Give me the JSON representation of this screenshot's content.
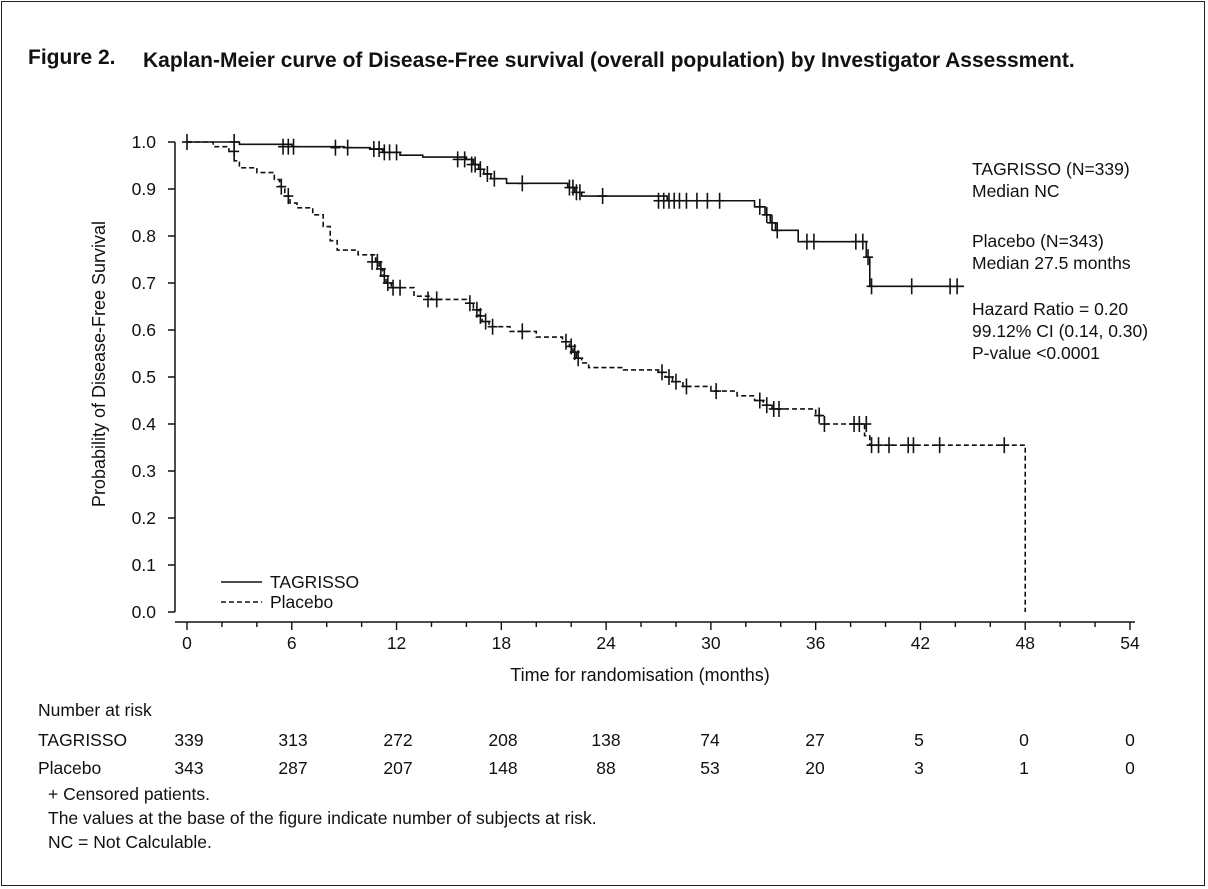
{
  "title": {
    "label": "Figure 2.",
    "text": "Kaplan-Meier curve of Disease-Free survival (overall population) by Investigator Assessment."
  },
  "chart_data": {
    "type": "line",
    "subtype": "kaplan-meier step curve",
    "xlabel": "Time for randomisation (months)",
    "ylabel": "Probability of Disease-Free Survival",
    "xlim": [
      0,
      54
    ],
    "ylim": [
      0,
      1
    ],
    "x_ticks": [
      0,
      6,
      12,
      18,
      24,
      30,
      36,
      42,
      48,
      54
    ],
    "y_ticks": [
      "0.0",
      "0.1",
      "0.2",
      "0.3",
      "0.4",
      "0.5",
      "0.6",
      "0.7",
      "0.8",
      "0.9",
      "1.0"
    ],
    "grid": false,
    "legend_position": "bottom-left",
    "series": [
      {
        "name": "TAGRISSO",
        "line_style": "solid",
        "steps": [
          [
            0,
            1.0
          ],
          [
            3.0,
            0.995
          ],
          [
            6.0,
            0.99
          ],
          [
            9.0,
            0.988
          ],
          [
            10.5,
            0.985
          ],
          [
            11.2,
            0.978
          ],
          [
            12.2,
            0.972
          ],
          [
            13.5,
            0.968
          ],
          [
            16.0,
            0.963
          ],
          [
            16.4,
            0.952
          ],
          [
            16.7,
            0.942
          ],
          [
            17.0,
            0.932
          ],
          [
            17.4,
            0.922
          ],
          [
            18.3,
            0.912
          ],
          [
            21.8,
            0.903
          ],
          [
            22.2,
            0.893
          ],
          [
            22.6,
            0.885
          ],
          [
            27.5,
            0.875
          ],
          [
            32.5,
            0.862
          ],
          [
            33.1,
            0.845
          ],
          [
            33.4,
            0.828
          ],
          [
            33.7,
            0.812
          ],
          [
            35.0,
            0.788
          ],
          [
            38.9,
            0.755
          ],
          [
            39.1,
            0.693
          ]
        ],
        "end_x": 44.5,
        "censored": [
          [
            0,
            1.0
          ],
          [
            2.7,
            1.0
          ],
          [
            5.5,
            0.99
          ],
          [
            5.8,
            0.99
          ],
          [
            6.1,
            0.99
          ],
          [
            8.5,
            0.988
          ],
          [
            9.2,
            0.988
          ],
          [
            10.7,
            0.985
          ],
          [
            11.0,
            0.985
          ],
          [
            11.3,
            0.978
          ],
          [
            11.6,
            0.978
          ],
          [
            12.0,
            0.978
          ],
          [
            15.5,
            0.963
          ],
          [
            15.9,
            0.963
          ],
          [
            16.3,
            0.952
          ],
          [
            16.5,
            0.952
          ],
          [
            16.8,
            0.942
          ],
          [
            17.2,
            0.932
          ],
          [
            17.6,
            0.922
          ],
          [
            19.2,
            0.912
          ],
          [
            21.9,
            0.903
          ],
          [
            22.1,
            0.903
          ],
          [
            22.3,
            0.893
          ],
          [
            22.5,
            0.893
          ],
          [
            23.8,
            0.885
          ],
          [
            27.0,
            0.875
          ],
          [
            27.3,
            0.875
          ],
          [
            27.6,
            0.875
          ],
          [
            27.9,
            0.875
          ],
          [
            28.2,
            0.875
          ],
          [
            28.6,
            0.875
          ],
          [
            29.2,
            0.875
          ],
          [
            29.8,
            0.875
          ],
          [
            30.5,
            0.875
          ],
          [
            32.8,
            0.862
          ],
          [
            33.2,
            0.845
          ],
          [
            33.5,
            0.828
          ],
          [
            33.8,
            0.812
          ],
          [
            35.5,
            0.788
          ],
          [
            35.9,
            0.788
          ],
          [
            38.3,
            0.788
          ],
          [
            38.7,
            0.788
          ],
          [
            39.0,
            0.755
          ],
          [
            39.2,
            0.693
          ],
          [
            41.5,
            0.693
          ],
          [
            43.7,
            0.693
          ],
          [
            44.1,
            0.693
          ]
        ]
      },
      {
        "name": "Placebo",
        "line_style": "dashed",
        "steps": [
          [
            0,
            1.0
          ],
          [
            1.5,
            0.99
          ],
          [
            2.4,
            0.98
          ],
          [
            2.7,
            0.96
          ],
          [
            3.0,
            0.945
          ],
          [
            4.0,
            0.935
          ],
          [
            5.0,
            0.92
          ],
          [
            5.3,
            0.905
          ],
          [
            5.6,
            0.885
          ],
          [
            5.9,
            0.87
          ],
          [
            6.3,
            0.86
          ],
          [
            7.2,
            0.845
          ],
          [
            7.8,
            0.82
          ],
          [
            8.2,
            0.79
          ],
          [
            8.6,
            0.77
          ],
          [
            9.8,
            0.76
          ],
          [
            10.8,
            0.745
          ],
          [
            11.0,
            0.73
          ],
          [
            11.2,
            0.715
          ],
          [
            11.4,
            0.7
          ],
          [
            11.7,
            0.69
          ],
          [
            13.0,
            0.672
          ],
          [
            14.0,
            0.665
          ],
          [
            16.0,
            0.657
          ],
          [
            16.4,
            0.643
          ],
          [
            16.7,
            0.63
          ],
          [
            16.9,
            0.618
          ],
          [
            17.3,
            0.607
          ],
          [
            18.5,
            0.597
          ],
          [
            20.0,
            0.585
          ],
          [
            21.5,
            0.575
          ],
          [
            21.9,
            0.565
          ],
          [
            22.1,
            0.553
          ],
          [
            22.3,
            0.54
          ],
          [
            22.6,
            0.53
          ],
          [
            23.0,
            0.52
          ],
          [
            25.0,
            0.515
          ],
          [
            27.0,
            0.51
          ],
          [
            27.4,
            0.5
          ],
          [
            27.8,
            0.49
          ],
          [
            28.4,
            0.48
          ],
          [
            30.0,
            0.47
          ],
          [
            31.5,
            0.46
          ],
          [
            32.5,
            0.45
          ],
          [
            33.0,
            0.44
          ],
          [
            33.5,
            0.432
          ],
          [
            36.0,
            0.418
          ],
          [
            36.5,
            0.4
          ],
          [
            38.8,
            0.375
          ],
          [
            39.1,
            0.355
          ],
          [
            48.0,
            0.0
          ]
        ],
        "end_x": 48.0,
        "censored": [
          [
            2.7,
            0.98
          ],
          [
            5.4,
            0.905
          ],
          [
            5.8,
            0.885
          ],
          [
            10.6,
            0.745
          ],
          [
            10.9,
            0.745
          ],
          [
            11.1,
            0.73
          ],
          [
            11.3,
            0.715
          ],
          [
            11.5,
            0.7
          ],
          [
            11.8,
            0.69
          ],
          [
            12.2,
            0.69
          ],
          [
            13.8,
            0.665
          ],
          [
            14.3,
            0.665
          ],
          [
            16.2,
            0.657
          ],
          [
            16.6,
            0.643
          ],
          [
            16.8,
            0.63
          ],
          [
            17.1,
            0.618
          ],
          [
            17.5,
            0.607
          ],
          [
            19.2,
            0.597
          ],
          [
            21.7,
            0.575
          ],
          [
            22.0,
            0.565
          ],
          [
            22.2,
            0.553
          ],
          [
            22.4,
            0.54
          ],
          [
            27.2,
            0.51
          ],
          [
            27.6,
            0.5
          ],
          [
            28.0,
            0.49
          ],
          [
            28.6,
            0.48
          ],
          [
            30.3,
            0.47
          ],
          [
            32.8,
            0.45
          ],
          [
            33.2,
            0.44
          ],
          [
            33.6,
            0.432
          ],
          [
            33.9,
            0.432
          ],
          [
            36.2,
            0.418
          ],
          [
            36.5,
            0.4
          ],
          [
            38.2,
            0.4
          ],
          [
            38.5,
            0.4
          ],
          [
            38.9,
            0.4
          ],
          [
            39.2,
            0.355
          ],
          [
            39.6,
            0.355
          ],
          [
            40.2,
            0.355
          ],
          [
            41.3,
            0.355
          ],
          [
            41.6,
            0.355
          ],
          [
            43.1,
            0.355
          ],
          [
            46.8,
            0.355
          ]
        ]
      }
    ],
    "annotations": [
      {
        "line1": "TAGRISSO (N=339)",
        "line2": "Median NC"
      },
      {
        "line1": "Placebo (N=343)",
        "line2": "Median 27.5 months"
      },
      {
        "line1": "Hazard Ratio = 0.20",
        "line2": "99.12% CI (0.14, 0.30)",
        "line3": "P-value <0.0001"
      }
    ]
  },
  "risk_table": {
    "header": "Number at risk",
    "rows": [
      {
        "label": "TAGRISSO",
        "values": [
          "339",
          "313",
          "272",
          "208",
          "138",
          "74",
          "27",
          "5",
          "0",
          "0"
        ]
      },
      {
        "label": "Placebo",
        "values": [
          "343",
          "287",
          "207",
          "148",
          "88",
          "53",
          "20",
          "3",
          "1",
          "0"
        ]
      }
    ]
  },
  "footnotes": [
    "+ Censored patients.",
    "The values at the base of the figure indicate number of subjects at risk.",
    "NC = Not Calculable."
  ]
}
